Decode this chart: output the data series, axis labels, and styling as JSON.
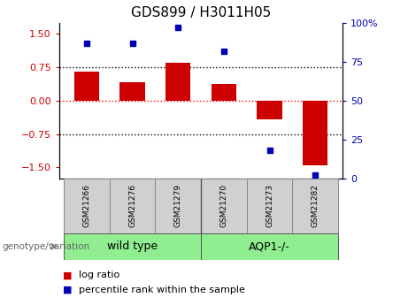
{
  "title": "GDS899 / H3011H05",
  "samples": [
    "GSM21266",
    "GSM21276",
    "GSM21279",
    "GSM21270",
    "GSM21273",
    "GSM21282"
  ],
  "log_ratios": [
    0.65,
    0.42,
    0.85,
    0.38,
    -0.42,
    -1.45
  ],
  "percentile_ranks": [
    87,
    87,
    97,
    82,
    18,
    2
  ],
  "group_color": "#90ee90",
  "bar_color": "#cc0000",
  "dot_color": "#0000bb",
  "ylim_left": [
    -1.75,
    1.75
  ],
  "ylim_right": [
    0,
    100
  ],
  "yticks_left": [
    -1.5,
    -0.75,
    0,
    0.75,
    1.5
  ],
  "yticks_right": [
    0,
    25,
    50,
    75,
    100
  ],
  "legend_items": [
    "log ratio",
    "percentile rank within the sample"
  ],
  "legend_colors": [
    "#cc0000",
    "#0000bb"
  ],
  "genotype_label": "genotype/variation",
  "left_axis_color": "#cc0000",
  "right_axis_color": "#0000bb",
  "bar_width": 0.55,
  "title_fontsize": 11,
  "tick_fontsize": 8,
  "sample_fontsize": 6.5,
  "group_fontsize": 9,
  "legend_fontsize": 8
}
